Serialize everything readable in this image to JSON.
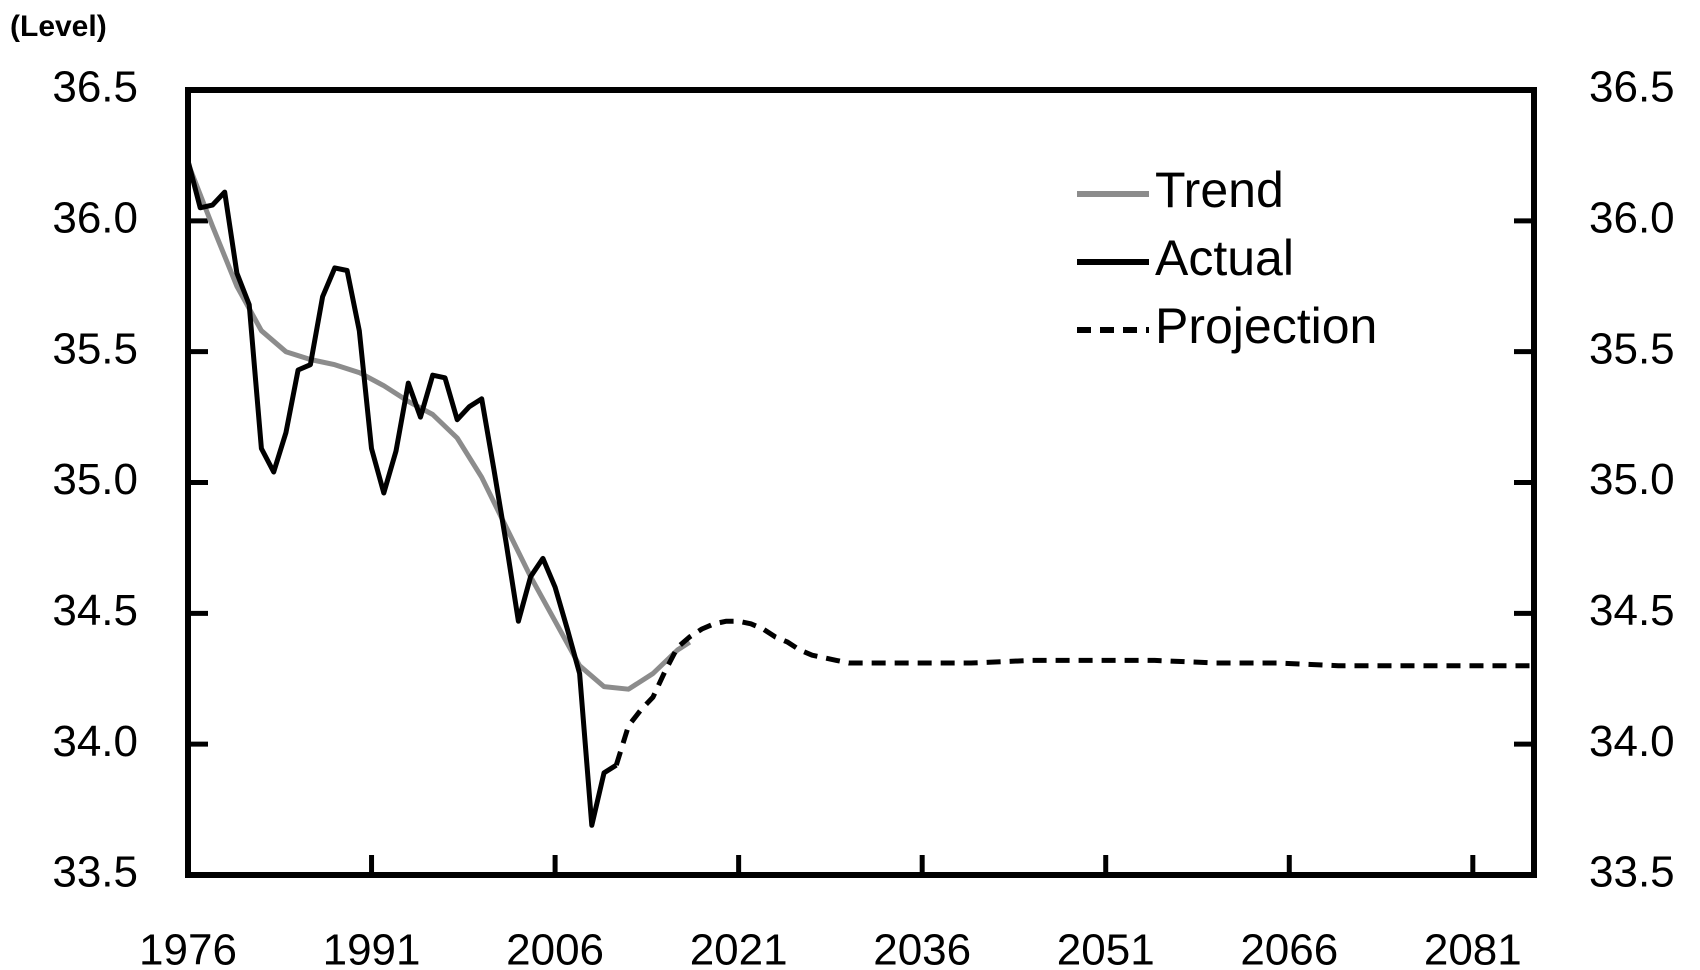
{
  "chart_data": {
    "type": "line",
    "unit_label": "(Level)",
    "xlim": [
      1976,
      2086
    ],
    "xticks": [
      1976,
      1991,
      2006,
      2021,
      2036,
      2051,
      2066,
      2081
    ],
    "ylim": [
      33.5,
      36.5
    ],
    "yticks": [
      {
        "value": 33.5,
        "label": "33.5"
      },
      {
        "value": 34,
        "label": "34.0"
      },
      {
        "value": 34.5,
        "label": "34.5"
      },
      {
        "value": 35,
        "label": "35.0"
      },
      {
        "value": 35.5,
        "label": "35.5"
      },
      {
        "value": 36,
        "label": "36.0"
      },
      {
        "value": 36.5,
        "label": "36.5"
      }
    ],
    "y2lim": [
      33.5,
      36.5
    ],
    "y2ticks": [
      {
        "value": 33.5,
        "label": "33.5"
      },
      {
        "value": 34,
        "label": "34.0"
      },
      {
        "value": 34.5,
        "label": "34.5"
      },
      {
        "value": 35,
        "label": "35.0"
      },
      {
        "value": 35.5,
        "label": "35.5"
      },
      {
        "value": 36,
        "label": "36.0"
      },
      {
        "value": 36.5,
        "label": "36.5"
      }
    ],
    "legend": "upper-right",
    "series": [
      {
        "name": "Trend",
        "color": "#8c8c8c",
        "dash": "solid",
        "x": [
          1976,
          1978,
          1980,
          1982,
          1984,
          1986,
          1988,
          1990,
          1992,
          1994,
          1996,
          1998,
          2000,
          2002,
          2004,
          2006,
          2008,
          2010,
          2012,
          2014,
          2016,
          2017
        ],
        "values": [
          36.22,
          35.98,
          35.75,
          35.58,
          35.5,
          35.47,
          35.45,
          35.42,
          35.37,
          35.31,
          35.26,
          35.17,
          35.02,
          34.83,
          34.64,
          34.47,
          34.3,
          34.22,
          34.21,
          34.27,
          34.36,
          34.39
        ]
      },
      {
        "name": "Actual",
        "color": "#000000",
        "dash": "solid",
        "x": [
          1976,
          1977,
          1978,
          1979,
          1980,
          1981,
          1982,
          1983,
          1984,
          1985,
          1986,
          1987,
          1988,
          1989,
          1990,
          1991,
          1992,
          1993,
          1994,
          1995,
          1996,
          1997,
          1998,
          1999,
          2000,
          2001,
          2002,
          2003,
          2004,
          2005,
          2006,
          2007,
          2008,
          2009,
          2010,
          2011
        ],
        "values": [
          36.23,
          36.05,
          36.06,
          36.11,
          35.8,
          35.68,
          35.13,
          35.04,
          35.19,
          35.43,
          35.45,
          35.71,
          35.82,
          35.81,
          35.58,
          35.13,
          34.96,
          35.12,
          35.38,
          35.25,
          35.41,
          35.4,
          35.24,
          35.29,
          35.32,
          35.05,
          34.77,
          34.47,
          34.64,
          34.71,
          34.6,
          34.44,
          34.27,
          33.69,
          33.89,
          33.92
        ]
      },
      {
        "name": "Projection",
        "color": "#000000",
        "dash": "dashed",
        "x": [
          2011,
          2012,
          2013,
          2014,
          2015,
          2016,
          2017,
          2018,
          2019,
          2020,
          2021,
          2022,
          2023,
          2024,
          2025,
          2026,
          2027,
          2028,
          2029,
          2030,
          2035,
          2040,
          2045,
          2050,
          2055,
          2060,
          2065,
          2070,
          2075,
          2080,
          2086
        ],
        "values": [
          33.92,
          34.07,
          34.13,
          34.18,
          34.28,
          34.37,
          34.41,
          34.44,
          34.46,
          34.47,
          34.47,
          34.46,
          34.44,
          34.41,
          34.39,
          34.36,
          34.34,
          34.33,
          34.32,
          34.31,
          34.31,
          34.31,
          34.32,
          34.32,
          34.32,
          34.31,
          34.31,
          34.3,
          34.3,
          34.3,
          34.3
        ]
      }
    ]
  }
}
